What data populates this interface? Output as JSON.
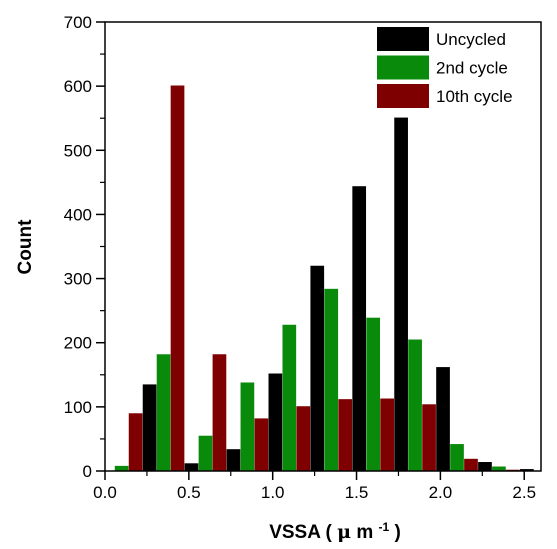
{
  "chart_data": {
    "type": "bar",
    "title": "",
    "xlabel": "VSSA",
    "xlabel_unit_prefix": "(",
    "xlabel_unit_mu": "μ",
    "xlabel_unit_m": "m",
    "xlabel_unit_exp": "-1",
    "xlabel_unit_suffix": ")",
    "ylabel": "Count",
    "xlim": [
      0.0,
      2.6
    ],
    "ylim": [
      0,
      700
    ],
    "x_ticks": [
      0.0,
      0.5,
      1.0,
      1.5,
      2.0,
      2.5
    ],
    "x_tick_labels": [
      "0.0",
      "0.5",
      "1.0",
      "1.5",
      "2.0",
      "2.5"
    ],
    "y_ticks": [
      0,
      100,
      200,
      300,
      400,
      500,
      600,
      700
    ],
    "y_tick_labels": [
      "0",
      "100",
      "200",
      "300",
      "400",
      "500",
      "600",
      "700"
    ],
    "bin_centers": [
      0.1,
      0.35,
      0.6,
      0.85,
      1.1,
      1.35,
      1.6,
      1.85,
      2.1,
      2.35,
      2.6
    ],
    "bin_width": 0.25,
    "legend_position": "top-right",
    "series": [
      {
        "name": "Uncycled",
        "color": "#000000",
        "values": [
          0,
          135,
          12,
          34,
          152,
          320,
          444,
          551,
          162,
          14,
          3
        ]
      },
      {
        "name": "2nd cycle",
        "color": "#0a8a0a",
        "values": [
          8,
          182,
          55,
          138,
          228,
          284,
          239,
          205,
          42,
          7,
          0
        ]
      },
      {
        "name": "10th cycle",
        "color": "#7f0000",
        "values": [
          90,
          601,
          182,
          82,
          101,
          112,
          113,
          104,
          19,
          2,
          0
        ]
      }
    ]
  }
}
